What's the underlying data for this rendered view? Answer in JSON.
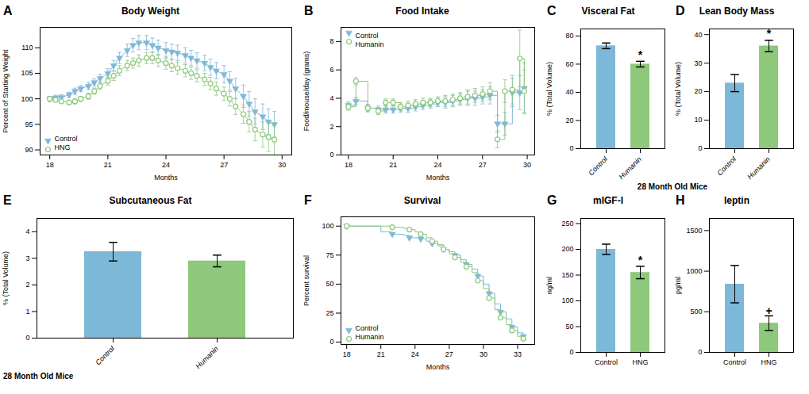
{
  "chart_data": [
    {
      "type": "line",
      "panel_label": "A",
      "title": "Body Weight",
      "xlabel": "Months",
      "ylabel": "Percent of Starting Weight",
      "xlim": [
        17.5,
        30.5
      ],
      "ylim": [
        89,
        114
      ],
      "xticks": [
        18,
        21,
        24,
        27,
        30
      ],
      "yticks": [
        90,
        95,
        100,
        105,
        110
      ],
      "grid": false,
      "legend": "lower left",
      "x": [
        18.0,
        18.3,
        18.6,
        19.0,
        19.3,
        19.6,
        20.0,
        20.3,
        20.6,
        21.0,
        21.3,
        21.6,
        22.0,
        22.3,
        22.6,
        23.0,
        23.3,
        23.6,
        24.0,
        24.3,
        24.6,
        25.0,
        25.3,
        25.6,
        26.0,
        26.3,
        26.6,
        27.0,
        27.3,
        27.6,
        28.0,
        28.3,
        28.6,
        29.0,
        29.3,
        29.6
      ],
      "series": [
        {
          "name": "Control",
          "color": "#7EB8D8",
          "marker": "triangle-down",
          "values": [
            100.0,
            100.2,
            100.3,
            100.8,
            101.5,
            102.0,
            102.5,
            103.2,
            104.0,
            105.0,
            106.5,
            108.0,
            109.5,
            110.5,
            111.0,
            111.0,
            110.5,
            110.0,
            109.5,
            109.2,
            109.0,
            108.5,
            108.0,
            107.5,
            107.0,
            106.2,
            105.5,
            104.8,
            103.5,
            102.0,
            100.5,
            99.0,
            97.5,
            96.5,
            95.5,
            95.0
          ],
          "errors": [
            0.5,
            0.5,
            0.5,
            0.5,
            0.6,
            0.6,
            0.7,
            0.7,
            0.8,
            0.9,
            1.0,
            1.1,
            1.2,
            1.3,
            1.4,
            1.4,
            1.4,
            1.5,
            1.5,
            1.5,
            1.5,
            1.5,
            1.5,
            1.5,
            1.5,
            1.6,
            1.6,
            1.7,
            1.8,
            2.0,
            2.2,
            2.4,
            2.5,
            2.5,
            2.5,
            2.5
          ]
        },
        {
          "name": "HNG",
          "color": "#8DC87B",
          "marker": "circle-open",
          "values": [
            100.0,
            99.8,
            99.5,
            99.3,
            99.5,
            100.0,
            100.5,
            101.5,
            102.5,
            103.5,
            104.5,
            105.5,
            106.5,
            107.0,
            107.5,
            108.0,
            108.0,
            107.5,
            107.0,
            106.5,
            106.0,
            105.5,
            105.0,
            104.5,
            103.8,
            103.0,
            102.0,
            101.0,
            100.0,
            98.5,
            97.0,
            95.5,
            94.0,
            93.0,
            92.5,
            92.0
          ],
          "errors": [
            0.4,
            0.4,
            0.4,
            0.4,
            0.5,
            0.5,
            0.6,
            0.6,
            0.7,
            0.8,
            0.9,
            1.0,
            1.0,
            1.0,
            1.1,
            1.1,
            1.1,
            1.2,
            1.2,
            1.2,
            1.2,
            1.2,
            1.2,
            1.2,
            1.2,
            1.2,
            1.3,
            1.3,
            1.4,
            1.6,
            1.8,
            2.0,
            2.2,
            2.5,
            2.8,
            3.0
          ]
        }
      ]
    },
    {
      "type": "step",
      "panel_label": "B",
      "title": "Food Intake",
      "xlabel": "Months",
      "ylabel": "Food/mouse/day (grams)",
      "xlim": [
        17.5,
        30.5
      ],
      "ylim": [
        0,
        9
      ],
      "xticks": [
        18,
        21,
        24,
        27,
        30
      ],
      "yticks": [
        0,
        2,
        4,
        6,
        8
      ],
      "grid": false,
      "legend": "upper left",
      "x": [
        18.0,
        18.5,
        19.3,
        20.0,
        20.5,
        21.0,
        21.5,
        22.0,
        22.5,
        23.0,
        23.5,
        24.0,
        24.5,
        25.0,
        25.5,
        26.0,
        26.5,
        27.0,
        27.5,
        28.0,
        28.5,
        29.0,
        29.5,
        29.8
      ],
      "series": [
        {
          "name": "Control",
          "color": "#7EB8D8",
          "marker": "triangle-down",
          "values": [
            3.5,
            3.8,
            3.3,
            3.2,
            3.2,
            3.2,
            3.3,
            3.3,
            3.4,
            3.5,
            3.6,
            3.7,
            3.7,
            3.8,
            3.9,
            4.0,
            4.0,
            4.1,
            4.2,
            2.2,
            2.2,
            4.4,
            4.4,
            4.7
          ],
          "errors": [
            0.25,
            0.25,
            0.25,
            0.25,
            0.25,
            0.25,
            0.3,
            0.3,
            0.3,
            0.3,
            0.3,
            0.3,
            0.4,
            0.4,
            0.4,
            0.5,
            0.5,
            0.5,
            0.6,
            0.6,
            0.8,
            1.0,
            1.2,
            1.8
          ]
        },
        {
          "name": "Humanin",
          "color": "#8DC87B",
          "marker": "circle-open",
          "values": [
            3.4,
            5.2,
            3.3,
            3.1,
            3.7,
            3.7,
            3.4,
            3.5,
            3.6,
            3.7,
            3.7,
            3.8,
            3.8,
            3.9,
            4.0,
            4.1,
            4.2,
            4.3,
            4.5,
            1.1,
            4.5,
            4.6,
            6.8,
            4.5
          ],
          "errors": [
            0.25,
            0.25,
            0.25,
            0.25,
            0.25,
            0.25,
            0.3,
            0.3,
            0.3,
            0.3,
            0.3,
            0.3,
            0.4,
            0.4,
            0.4,
            0.5,
            0.5,
            0.5,
            0.6,
            0.6,
            0.8,
            1.0,
            2.0,
            1.5
          ]
        }
      ]
    },
    {
      "type": "bar",
      "panel_label": "C",
      "title": "Visceral Fat",
      "xlabel": "28 Month Old Mice",
      "ylabel": "% (Total Volume)",
      "categories": [
        "Control",
        "Humanin"
      ],
      "values": [
        73,
        60
      ],
      "errors": [
        2.0,
        2.0
      ],
      "colors": [
        "#7EB8D8",
        "#8DC87B"
      ],
      "ylim": [
        0,
        85
      ],
      "yticks": [
        0,
        20,
        40,
        60,
        80
      ],
      "grid": false,
      "annotations": [
        {
          "text": "*",
          "x": "Humanin",
          "y": 64
        }
      ]
    },
    {
      "type": "bar",
      "panel_label": "D",
      "title": "Lean Body Mass",
      "ylabel": "% (Total Volume)",
      "categories": [
        "Control",
        "Humanin"
      ],
      "values": [
        23,
        36
      ],
      "errors": [
        3.0,
        2.0
      ],
      "colors": [
        "#7EB8D8",
        "#8DC87B"
      ],
      "ylim": [
        0,
        42
      ],
      "yticks": [
        0,
        10,
        20,
        30,
        40
      ],
      "grid": false,
      "annotations": [
        {
          "text": "*",
          "x": "Humanin",
          "y": 39
        }
      ]
    },
    {
      "type": "bar",
      "panel_label": "E",
      "title": "Subcutaneous Fat",
      "xlabel": "28 Month Old Mice",
      "ylabel": "% (Total Volume)",
      "categories": [
        "Control",
        "Humanin"
      ],
      "values": [
        3.25,
        2.9
      ],
      "errors": [
        0.35,
        0.22
      ],
      "colors": [
        "#7EB8D8",
        "#8DC87B"
      ],
      "ylim": [
        0,
        4.5
      ],
      "yticks": [
        0,
        1,
        2,
        3,
        4
      ],
      "grid": false
    },
    {
      "type": "step",
      "panel_label": "F",
      "title": "Survival",
      "xlabel": "Months",
      "ylabel": "Percent survival",
      "xlim": [
        17.5,
        34.5
      ],
      "ylim": [
        -2,
        108
      ],
      "xticks": [
        18,
        21,
        24,
        27,
        30,
        33
      ],
      "yticks": [
        0,
        25,
        50,
        75,
        100
      ],
      "grid": false,
      "legend": "lower left",
      "x": [
        18,
        21,
        22,
        23,
        23.5,
        24,
        24.5,
        25,
        25.5,
        26,
        26.5,
        27,
        27.5,
        28,
        28.5,
        29,
        29.5,
        30,
        30.5,
        31,
        31.5,
        32,
        32.5,
        33,
        33.5
      ],
      "series": [
        {
          "name": "Control",
          "color": "#7EB8D8",
          "marker": "triangle-down",
          "values": [
            100,
            95,
            93,
            92,
            90,
            90,
            89,
            87,
            85,
            83,
            80,
            78,
            75,
            71,
            67,
            63,
            57,
            50,
            42,
            33,
            26,
            20,
            13,
            8,
            5
          ]
        },
        {
          "name": "Humanin",
          "color": "#8DC87B",
          "marker": "circle-open",
          "values": [
            100,
            100,
            99,
            98,
            97,
            95,
            93,
            90,
            87,
            84,
            80,
            76,
            73,
            69,
            65,
            60,
            53,
            46,
            38,
            28,
            21,
            15,
            10,
            5,
            3
          ]
        }
      ]
    },
    {
      "type": "bar",
      "panel_label": "G",
      "title": "mIGF-I",
      "ylabel": "ng/ml",
      "categories": [
        "Control",
        "HNG"
      ],
      "values": [
        200,
        155
      ],
      "errors": [
        10,
        12
      ],
      "colors": [
        "#7EB8D8",
        "#8DC87B"
      ],
      "ylim": [
        0,
        260
      ],
      "yticks": [
        0,
        50,
        100,
        150,
        200,
        250
      ],
      "grid": false,
      "annotations": [
        {
          "text": "*",
          "x": "HNG",
          "y": 172
        }
      ]
    },
    {
      "type": "bar",
      "panel_label": "H",
      "title": "leptin",
      "ylabel": "pg/ml",
      "categories": [
        "Control",
        "HNG"
      ],
      "values": [
        840,
        360
      ],
      "errors": [
        230,
        90
      ],
      "colors": [
        "#7EB8D8",
        "#8DC87B"
      ],
      "ylim": [
        0,
        1650
      ],
      "yticks": [
        0,
        500,
        1000,
        1500
      ],
      "grid": false,
      "annotations": [
        {
          "text": "+",
          "x": "HNG",
          "y": 460
        }
      ]
    }
  ]
}
